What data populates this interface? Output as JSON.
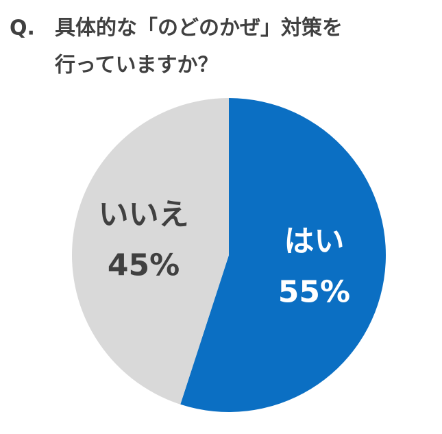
{
  "chart_data": {
    "type": "pie",
    "title_prefix": "Q.",
    "title_lines": [
      "具体的な「のどのかぜ」対策を",
      "行っていますか？"
    ],
    "categories": [
      "はい",
      "いいえ"
    ],
    "values": [
      55,
      45
    ],
    "value_labels": [
      "55%",
      "45%"
    ],
    "colors": [
      "#0b6fc3",
      "#d9d9d9"
    ],
    "label_colors": [
      "#ffffff",
      "#404040"
    ]
  }
}
